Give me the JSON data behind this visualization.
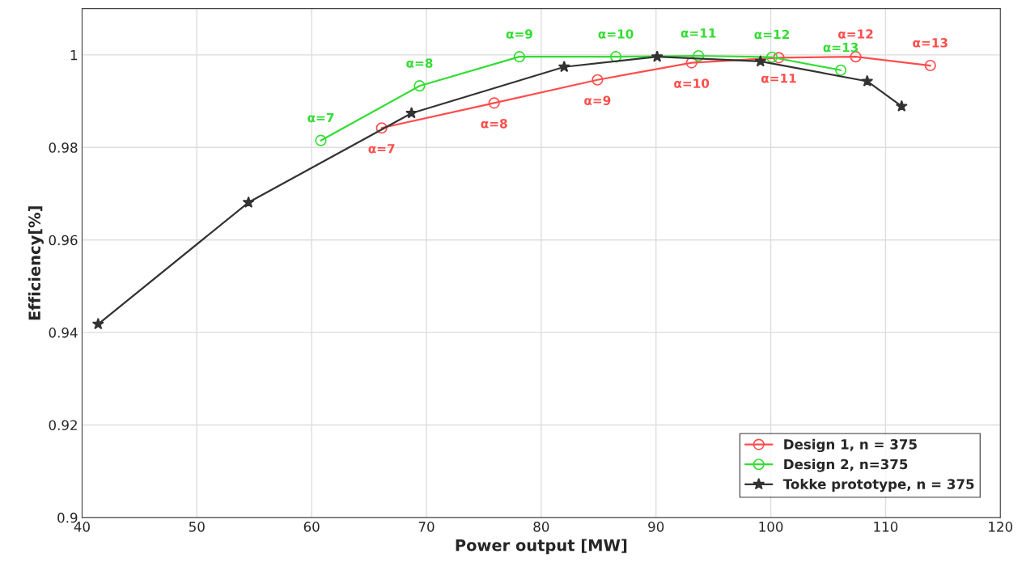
{
  "chart_data": {
    "type": "line",
    "xlabel": "Power output [MW]",
    "ylabel": "Efficiency[%]",
    "xlim": [
      40,
      120
    ],
    "xticks": [
      40,
      50,
      60,
      70,
      80,
      90,
      100,
      110,
      120
    ],
    "ylim": [
      0.9,
      1.01
    ],
    "yticks": [
      0.9,
      0.92,
      0.94,
      0.96,
      0.98,
      1
    ],
    "grid": true,
    "legend": "bottom right",
    "series": [
      {
        "name": "Design 1, n = 375",
        "color": "#ff4d4d",
        "marker": "circle",
        "x": [
          66.1,
          75.9,
          84.9,
          93.1,
          100.7,
          107.4,
          113.9
        ],
        "values": [
          0.9842,
          0.9896,
          0.9946,
          0.9983,
          0.9994,
          0.9996,
          0.9977
        ]
      },
      {
        "name": "Design 2, n=375",
        "color": "#33dd33",
        "marker": "circle",
        "x": [
          60.8,
          69.4,
          78.1,
          86.5,
          93.7,
          100.1,
          106.1
        ],
        "values": [
          0.9815,
          0.9933,
          0.9996,
          0.9996,
          0.9998,
          0.9995,
          0.9967
        ]
      },
      {
        "name": "Tokke prototype, n = 375",
        "color": "#333333",
        "marker": "star",
        "x": [
          41.4,
          54.5,
          68.7,
          82.0,
          90.1,
          99.1,
          108.4,
          111.4
        ],
        "values": [
          0.9418,
          0.9681,
          0.9874,
          0.9974,
          0.9996,
          0.9986,
          0.9943,
          0.9889
        ]
      }
    ],
    "annotations": [
      {
        "text": "α=7",
        "x": 66.1,
        "y": 0.9842
      },
      {
        "text": "α=8",
        "x": 75.9,
        "y": 0.9896
      },
      {
        "text": "α=9",
        "x": 84.9,
        "y": 0.9946
      },
      {
        "text": "α=10",
        "x": 93.1,
        "y": 0.9983
      },
      {
        "text": "α=11",
        "x": 100.7,
        "y": 0.9994
      },
      {
        "text": "α=12",
        "x": 107.4,
        "y": 0.9996
      },
      {
        "text": "α=13",
        "x": 113.9,
        "y": 0.9977
      },
      {
        "text": "α=7",
        "x": 60.8,
        "y": 0.9815
      },
      {
        "text": "α=8",
        "x": 69.4,
        "y": 0.9933
      },
      {
        "text": "α=9",
        "x": 78.1,
        "y": 0.9996
      },
      {
        "text": "α=10",
        "x": 86.5,
        "y": 0.9996
      },
      {
        "text": "α=11",
        "x": 93.7,
        "y": 0.9998
      },
      {
        "text": "α=12",
        "x": 100.1,
        "y": 0.9995
      },
      {
        "text": "α=13",
        "x": 106.1,
        "y": 0.9967
      }
    ]
  }
}
